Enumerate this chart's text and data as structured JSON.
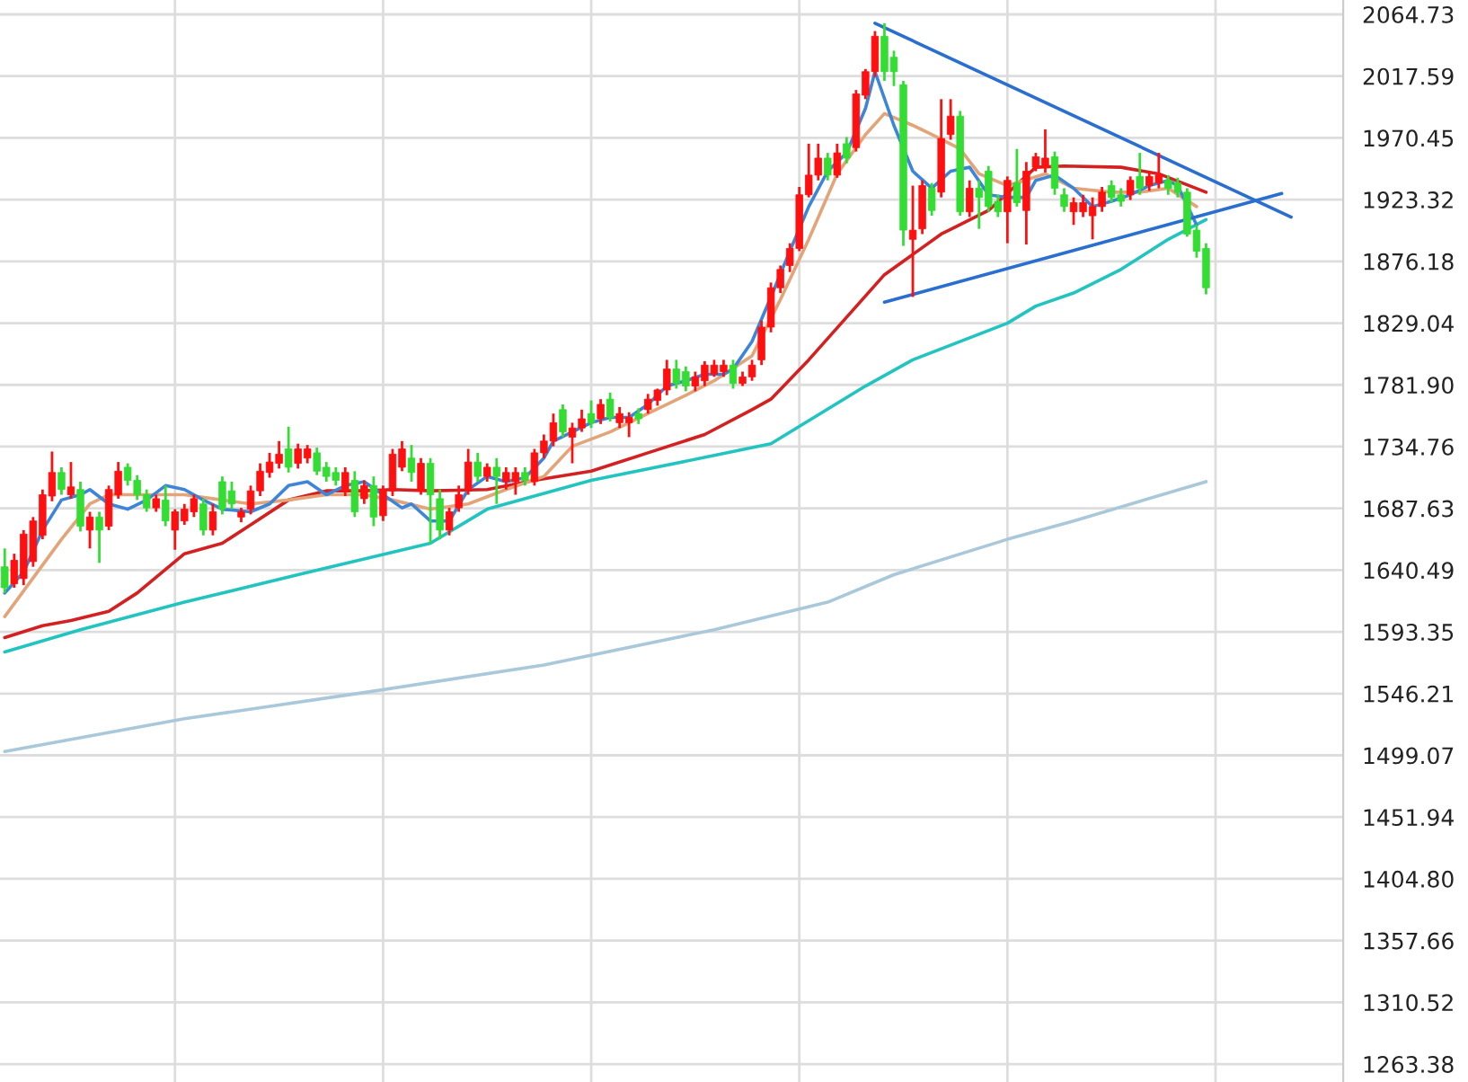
{
  "chart_data": {
    "type": "candlestick",
    "categories": [
      null,
      null,
      null,
      null,
      null,
      null,
      null,
      null,
      null,
      null,
      null,
      null,
      null,
      null,
      null,
      null,
      null,
      null,
      null,
      null,
      null,
      null,
      null,
      null,
      null,
      null,
      null,
      null,
      null,
      null,
      null,
      null,
      null,
      null,
      null,
      null,
      null,
      null,
      null,
      null,
      null,
      null,
      null,
      null,
      null,
      null,
      null,
      null,
      null,
      null,
      null,
      null,
      null,
      null,
      null,
      null,
      null,
      null,
      null,
      null,
      null,
      null,
      null,
      null,
      null,
      null,
      null,
      null,
      null,
      null,
      null,
      null,
      null,
      null,
      null,
      null,
      null,
      null,
      null,
      null,
      null,
      null,
      null,
      null,
      null,
      null,
      null,
      null,
      null,
      null,
      null,
      null,
      null,
      null,
      null,
      null,
      null,
      null,
      null,
      null,
      null,
      null,
      null,
      null,
      null,
      null,
      null,
      null,
      null,
      null,
      null,
      null,
      null,
      null,
      null,
      null,
      null,
      null,
      null,
      null,
      null,
      null,
      null,
      null,
      null,
      null,
      null,
      null,
      null,
      null,
      null,
      null,
      null,
      null,
      null,
      null,
      null,
      null,
      null,
      null,
      null,
      null
    ],
    "ohlc": [
      [
        1643,
        1657,
        1623,
        1627
      ],
      [
        1630,
        1653,
        1627,
        1648
      ],
      [
        1634,
        1671,
        1629,
        1668
      ],
      [
        1647,
        1681,
        1643,
        1678
      ],
      [
        1667,
        1702,
        1664,
        1698
      ],
      [
        1697,
        1731,
        1693,
        1715
      ],
      [
        1715,
        1719,
        1698,
        1702
      ],
      [
        1698,
        1723,
        1695,
        1704
      ],
      [
        1702,
        1708,
        1670,
        1674
      ],
      [
        1671,
        1685,
        1657,
        1681
      ],
      [
        1681,
        1685,
        1646,
        1671
      ],
      [
        1674,
        1705,
        1671,
        1702
      ],
      [
        1698,
        1723,
        1695,
        1716
      ],
      [
        1719,
        1722,
        1705,
        1709
      ],
      [
        1709,
        1713,
        1694,
        1698
      ],
      [
        1698,
        1702,
        1685,
        1688
      ],
      [
        1688,
        1698,
        1685,
        1695
      ],
      [
        1694,
        1705,
        1674,
        1678
      ],
      [
        1671,
        1687,
        1656,
        1685
      ],
      [
        1678,
        1691,
        1675,
        1687
      ],
      [
        1685,
        1698,
        1681,
        1695
      ],
      [
        1691,
        1695,
        1667,
        1671
      ],
      [
        1671,
        1691,
        1667,
        1685
      ],
      [
        1708,
        1712,
        1683,
        1687
      ],
      [
        1701,
        1708,
        1687,
        1691
      ],
      [
        1681,
        1688,
        1677,
        1685
      ],
      [
        1687,
        1705,
        1683,
        1701
      ],
      [
        1701,
        1722,
        1697,
        1716
      ],
      [
        1715,
        1730,
        1711,
        1723
      ],
      [
        1722,
        1739,
        1718,
        1729
      ],
      [
        1733,
        1750,
        1715,
        1719
      ],
      [
        1722,
        1737,
        1718,
        1733
      ],
      [
        1726,
        1736,
        1722,
        1733
      ],
      [
        1730,
        1734,
        1713,
        1716
      ],
      [
        1719,
        1723,
        1708,
        1712
      ],
      [
        1715,
        1719,
        1705,
        1709
      ],
      [
        1701,
        1719,
        1697,
        1715
      ],
      [
        1709,
        1716,
        1681,
        1685
      ],
      [
        1695,
        1709,
        1691,
        1705
      ],
      [
        1705,
        1712,
        1674,
        1681
      ],
      [
        1682,
        1705,
        1678,
        1702
      ],
      [
        1701,
        1733,
        1697,
        1729
      ],
      [
        1719,
        1739,
        1716,
        1733
      ],
      [
        1726,
        1736,
        1708,
        1715
      ],
      [
        1701,
        1726,
        1698,
        1722
      ],
      [
        1722,
        1726,
        1661,
        1698
      ],
      [
        1695,
        1702,
        1664,
        1671
      ],
      [
        1671,
        1688,
        1667,
        1685
      ],
      [
        1688,
        1705,
        1685,
        1698
      ],
      [
        1701,
        1733,
        1698,
        1723
      ],
      [
        1723,
        1730,
        1708,
        1712
      ],
      [
        1712,
        1722,
        1708,
        1719
      ],
      [
        1719,
        1726,
        1691,
        1712
      ],
      [
        1708,
        1719,
        1702,
        1715
      ],
      [
        1708,
        1719,
        1698,
        1715
      ],
      [
        1715,
        1719,
        1705,
        1709
      ],
      [
        1708,
        1733,
        1705,
        1730
      ],
      [
        1730,
        1744,
        1726,
        1739
      ],
      [
        1739,
        1760,
        1735,
        1753
      ],
      [
        1763,
        1767,
        1742,
        1746
      ],
      [
        1742,
        1753,
        1722,
        1749
      ],
      [
        1749,
        1763,
        1746,
        1756
      ],
      [
        1760,
        1770,
        1749,
        1753
      ],
      [
        1756,
        1771,
        1752,
        1767
      ],
      [
        1771,
        1776,
        1754,
        1757
      ],
      [
        1753,
        1765,
        1749,
        1760
      ],
      [
        1753,
        1761,
        1742,
        1757
      ],
      [
        1760,
        1764,
        1752,
        1756
      ],
      [
        1763,
        1775,
        1760,
        1771
      ],
      [
        1770,
        1779,
        1766,
        1778
      ],
      [
        1778,
        1801,
        1774,
        1794
      ],
      [
        1794,
        1801,
        1779,
        1783
      ],
      [
        1792,
        1796,
        1777,
        1781
      ],
      [
        1781,
        1792,
        1777,
        1788
      ],
      [
        1785,
        1800,
        1781,
        1797
      ],
      [
        1790,
        1801,
        1788,
        1797
      ],
      [
        1792,
        1801,
        1788,
        1797
      ],
      [
        1797,
        1801,
        1779,
        1783
      ],
      [
        1783,
        1792,
        1781,
        1788
      ],
      [
        1788,
        1801,
        1785,
        1797
      ],
      [
        1801,
        1831,
        1797,
        1826
      ],
      [
        1826,
        1860,
        1822,
        1856
      ],
      [
        1856,
        1873,
        1852,
        1870
      ],
      [
        1873,
        1890,
        1868,
        1886
      ],
      [
        1886,
        1933,
        1884,
        1927
      ],
      [
        1927,
        1966,
        1925,
        1942
      ],
      [
        1942,
        1966,
        1938,
        1955
      ],
      [
        1955,
        1959,
        1938,
        1942
      ],
      [
        1942,
        1966,
        1940,
        1959
      ],
      [
        1966,
        1971,
        1951,
        1955
      ],
      [
        1963,
        2007,
        1960,
        2004
      ],
      [
        2003,
        2023,
        2000,
        2021
      ],
      [
        2021,
        2052,
        2017,
        2048
      ],
      [
        2048,
        2058,
        2014,
        2021
      ],
      [
        2032,
        2037,
        2010,
        2021
      ],
      [
        2011,
        2014,
        1888,
        1900
      ],
      [
        1893,
        1934,
        1849,
        1900
      ],
      [
        1901,
        1938,
        1897,
        1934
      ],
      [
        1932,
        1936,
        1911,
        1915
      ],
      [
        1929,
        2000,
        1925,
        1970
      ],
      [
        1973,
        2000,
        1969,
        1987
      ],
      [
        1987,
        1991,
        1911,
        1914
      ],
      [
        1914,
        1938,
        1910,
        1932
      ],
      [
        1932,
        1938,
        1901,
        1925
      ],
      [
        1945,
        1949,
        1914,
        1918
      ],
      [
        1922,
        1927,
        1910,
        1914
      ],
      [
        1914,
        1941,
        1890,
        1938
      ],
      [
        1936,
        1962,
        1918,
        1921
      ],
      [
        1915,
        1952,
        1889,
        1945
      ],
      [
        1948,
        1959,
        1945,
        1956
      ],
      [
        1948,
        1977,
        1944,
        1955
      ],
      [
        1956,
        1960,
        1927,
        1932
      ],
      [
        1927,
        1932,
        1914,
        1918
      ],
      [
        1914,
        1925,
        1904,
        1921
      ],
      [
        1914,
        1927,
        1910,
        1921
      ],
      [
        1911,
        1925,
        1893,
        1918
      ],
      [
        1918,
        1933,
        1914,
        1929
      ],
      [
        1934,
        1938,
        1921,
        1925
      ],
      [
        1927,
        1932,
        1918,
        1922
      ],
      [
        1927,
        1941,
        1923,
        1938
      ],
      [
        1941,
        1959,
        1927,
        1932
      ],
      [
        1934,
        1945,
        1930,
        1941
      ],
      [
        1936,
        1959,
        1932,
        1942
      ],
      [
        1938,
        1942,
        1927,
        1932
      ],
      [
        1936,
        1940,
        1925,
        1929
      ],
      [
        1929,
        1932,
        1895,
        1897
      ],
      [
        1900,
        1904,
        1879,
        1884
      ],
      [
        1886,
        1890,
        1851,
        1856
      ],
      null,
      null,
      null,
      null,
      null,
      null,
      null,
      null,
      null,
      null,
      null,
      null,
      null,
      null
    ],
    "colors": [
      "#33dd33",
      "#ff1010",
      "#ff1010",
      "#ff1010",
      "#ff1010",
      "#ff1010",
      "#33dd33",
      "#ff1010",
      "#33dd33",
      "#ff1010",
      "#33dd33",
      "#ff1010",
      "#ff1010",
      "#33dd33",
      "#33dd33",
      "#33dd33",
      "#ff1010",
      "#33dd33",
      "#ff1010",
      "#ff1010",
      "#ff1010",
      "#33dd33",
      "#ff1010",
      "#33dd33",
      "#33dd33",
      "#ff1010",
      "#ff1010",
      "#ff1010",
      "#ff1010",
      "#ff1010",
      "#33dd33",
      "#ff1010",
      "#ff1010",
      "#33dd33",
      "#33dd33",
      "#33dd33",
      "#ff1010",
      "#33dd33",
      "#ff1010",
      "#33dd33",
      "#ff1010",
      "#ff1010",
      "#ff1010",
      "#33dd33",
      "#ff1010",
      "#33dd33",
      "#33dd33",
      "#ff1010",
      "#ff1010",
      "#ff1010",
      "#33dd33",
      "#ff1010",
      "#33dd33",
      "#ff1010",
      "#ff1010",
      "#33dd33",
      "#ff1010",
      "#ff1010",
      "#ff1010",
      "#33dd33",
      "#ff1010",
      "#ff1010",
      "#33dd33",
      "#ff1010",
      "#33dd33",
      "#ff1010",
      "#ff1010",
      "#33dd33",
      "#ff1010",
      "#ff1010",
      "#ff1010",
      "#33dd33",
      "#33dd33",
      "#ff1010",
      "#ff1010",
      "#ff1010",
      "#ff1010",
      "#33dd33",
      "#ff1010",
      "#ff1010",
      "#ff1010",
      "#ff1010",
      "#ff1010",
      "#ff1010",
      "#ff1010",
      "#ff1010",
      "#ff1010",
      "#33dd33",
      "#ff1010",
      "#33dd33",
      "#ff1010",
      "#ff1010",
      "#ff1010",
      "#33dd33",
      "#33dd33",
      "#33dd33",
      "#ff1010",
      "#ff1010",
      "#33dd33",
      "#ff1010",
      "#ff1010",
      "#33dd33",
      "#ff1010",
      "#33dd33",
      "#33dd33",
      "#33dd33",
      "#ff1010",
      "#33dd33",
      "#ff1010",
      "#ff1010",
      "#ff1010",
      "#33dd33",
      "#33dd33",
      "#ff1010",
      "#ff1010",
      "#ff1010",
      "#ff1010",
      "#33dd33",
      "#33dd33",
      "#ff1010",
      "#33dd33",
      "#ff1010",
      "#ff1010",
      "#33dd33",
      "#33dd33",
      "#33dd33",
      "#33dd33",
      "#33dd33",
      null,
      null,
      null,
      null,
      null,
      null,
      null,
      null,
      null,
      null,
      null,
      null,
      null,
      null
    ],
    "series": [
      {
        "type": "line",
        "color": "#a9c8da",
        "values": [
          1502,
          null,
          null,
          null,
          null,
          null,
          null,
          null,
          null,
          null,
          null,
          null,
          null,
          null,
          null,
          null,
          null,
          null,
          null,
          1527,
          null,
          null,
          null,
          null,
          null,
          null,
          null,
          null,
          null,
          null,
          null,
          null,
          null,
          null,
          null,
          null,
          null,
          null,
          1547,
          null,
          null,
          null,
          null,
          null,
          null,
          null,
          null,
          null,
          null,
          null,
          null,
          null,
          null,
          null,
          null,
          null,
          null,
          1568,
          null,
          null,
          null,
          null,
          null,
          null,
          null,
          null,
          null,
          null,
          null,
          null,
          null,
          null,
          null,
          null,
          null,
          1595,
          null,
          null,
          null,
          null,
          null,
          null,
          null,
          null,
          null,
          null,
          null,
          1616,
          null,
          null,
          null,
          null,
          null,
          null,
          1637,
          null,
          null,
          null,
          null,
          null,
          null,
          null,
          null,
          null,
          null,
          null,
          1664,
          null,
          null,
          null,
          null,
          null,
          null,
          1678,
          null,
          null,
          null,
          null,
          null,
          null,
          null,
          null,
          null,
          null,
          null,
          null,
          null,
          1708,
          null,
          null,
          null,
          null,
          null,
          null,
          null,
          null,
          null,
          null,
          null,
          null,
          null,
          null
        ]
      },
      {
        "type": "line",
        "color": "#22c4c0",
        "values": [
          1578,
          null,
          null,
          null,
          null,
          null,
          null,
          null,
          1595,
          null,
          null,
          null,
          null,
          null,
          null,
          null,
          null,
          null,
          null,
          1616,
          null,
          null,
          null,
          null,
          null,
          null,
          null,
          null,
          null,
          null,
          null,
          1637,
          null,
          null,
          null,
          null,
          null,
          null,
          null,
          null,
          null,
          null,
          null,
          null,
          null,
          1661,
          null,
          null,
          null,
          null,
          null,
          1687,
          null,
          null,
          null,
          null,
          null,
          null,
          null,
          null,
          null,
          null,
          1709,
          null,
          null,
          null,
          null,
          null,
          null,
          null,
          null,
          null,
          null,
          null,
          null,
          1728,
          null,
          null,
          null,
          null,
          null,
          1737,
          null,
          null,
          null,
          null,
          null,
          null,
          null,
          null,
          null,
          1781,
          null,
          null,
          null,
          null,
          1801,
          null,
          null,
          null,
          null,
          null,
          null,
          null,
          null,
          null,
          1829,
          null,
          null,
          1842,
          null,
          null,
          null,
          1852,
          null,
          null,
          null,
          null,
          1870,
          null,
          null,
          null,
          null,
          1893,
          null,
          null,
          null,
          1908,
          null,
          null,
          null,
          null,
          null,
          null,
          null,
          null,
          null,
          null,
          null,
          null,
          null,
          null
        ]
      },
      {
        "type": "line",
        "color": "#d42020",
        "values": [
          1589,
          null,
          null,
          null,
          1598,
          null,
          null,
          1602,
          null,
          null,
          null,
          1609,
          null,
          null,
          1623,
          null,
          null,
          null,
          null,
          1653,
          null,
          null,
          null,
          1661,
          null,
          null,
          1675,
          null,
          null,
          null,
          1694,
          null,
          null,
          null,
          1701,
          null,
          null,
          null,
          1701,
          null,
          null,
          1702,
          null,
          null,
          null,
          1701,
          null,
          null,
          null,
          null,
          null,
          1702,
          null,
          null,
          null,
          null,
          1709,
          null,
          null,
          null,
          null,
          null,
          1716,
          null,
          null,
          null,
          null,
          null,
          1730,
          null,
          null,
          null,
          null,
          null,
          1744,
          null,
          null,
          null,
          null,
          1763,
          null,
          1771,
          null,
          null,
          null,
          1801,
          null,
          null,
          null,
          null,
          null,
          null,
          null,
          1866,
          null,
          null,
          null,
          null,
          null,
          1897,
          null,
          null,
          null,
          null,
          1915,
          null,
          null,
          null,
          null,
          1948,
          null,
          null,
          1949,
          null,
          null,
          null,
          null,
          null,
          1948,
          null,
          null,
          null,
          1943,
          null,
          null,
          null,
          null,
          1929,
          null,
          null,
          null,
          null,
          null,
          null,
          null,
          null,
          null,
          null,
          null,
          null,
          null,
          null
        ]
      },
      {
        "type": "line",
        "color": "#e2a478",
        "values": [
          1605,
          null,
          null,
          null,
          null,
          null,
          1664,
          null,
          null,
          1691,
          null,
          1698,
          null,
          null,
          null,
          1698,
          null,
          null,
          null,
          1698,
          null,
          null,
          null,
          1694,
          null,
          null,
          1691,
          null,
          null,
          null,
          1694,
          null,
          null,
          null,
          1698,
          null,
          null,
          null,
          1698,
          null,
          null,
          1694,
          null,
          null,
          null,
          1687,
          null,
          null,
          null,
          1691,
          null,
          null,
          null,
          1702,
          null,
          null,
          null,
          1712,
          null,
          null,
          1735,
          null,
          null,
          null,
          1746,
          null,
          null,
          null,
          1760,
          null,
          null,
          null,
          1774,
          null,
          null,
          1785,
          null,
          null,
          null,
          1804,
          null,
          null,
          1847,
          null,
          null,
          1893,
          null,
          null,
          1943,
          null,
          null,
          1973,
          null,
          1989,
          null,
          null,
          1980,
          null,
          1973,
          null,
          null,
          1962,
          null,
          1943,
          null,
          null,
          1934,
          null,
          null,
          null,
          1943,
          null,
          null,
          1932,
          null,
          null,
          null,
          1929,
          null,
          null,
          1929,
          null,
          null,
          1932,
          null,
          null,
          1918,
          null,
          null,
          null,
          null,
          null,
          null,
          null,
          null,
          null,
          null,
          null,
          null,
          null,
          null,
          null
        ]
      },
      {
        "type": "line",
        "color": "#3d85d8",
        "values": [
          1623,
          null,
          1639,
          null,
          1671,
          null,
          1694,
          null,
          1698,
          1702,
          null,
          1691,
          null,
          1687,
          null,
          1694,
          null,
          1705,
          null,
          1702,
          null,
          1694,
          null,
          1687,
          null,
          null,
          1685,
          null,
          1691,
          null,
          1705,
          null,
          1708,
          null,
          1698,
          null,
          1705,
          null,
          1708,
          null,
          1698,
          null,
          1688,
          1691,
          null,
          1678,
          null,
          1678,
          null,
          1702,
          null,
          1712,
          null,
          1708,
          null,
          1711,
          null,
          1726,
          1739,
          null,
          1746,
          null,
          1753,
          null,
          1757,
          null,
          1757,
          null,
          1767,
          null,
          1781,
          null,
          1785,
          null,
          1790,
          null,
          1790,
          1794,
          null,
          1815,
          null,
          1849,
          null,
          1884,
          null,
          1918,
          null,
          1945,
          null,
          1959,
          null,
          1993,
          2021,
          null,
          1980,
          null,
          1945,
          null,
          1932,
          null,
          1945,
          null,
          1948,
          null,
          1927,
          null,
          1925,
          null,
          1925,
          1938,
          null,
          1942,
          null,
          1932,
          null,
          1918,
          null,
          1922,
          null,
          1927,
          null,
          1934,
          null,
          1938,
          1934,
          null,
          1904,
          null,
          null,
          null,
          null,
          null,
          null,
          null,
          null,
          null,
          null,
          null,
          null,
          null,
          null,
          null
        ]
      },
      {
        "type": "line",
        "color": "#2a6fd0",
        "values": [
          null,
          null,
          null,
          null,
          null,
          null,
          null,
          null,
          null,
          null,
          null,
          null,
          null,
          null,
          null,
          null,
          null,
          null,
          null,
          null,
          null,
          null,
          null,
          null,
          null,
          null,
          null,
          null,
          null,
          null,
          null,
          null,
          null,
          null,
          null,
          null,
          null,
          null,
          null,
          null,
          null,
          null,
          null,
          null,
          null,
          null,
          null,
          null,
          null,
          null,
          null,
          null,
          null,
          null,
          null,
          null,
          null,
          null,
          null,
          null,
          null,
          null,
          null,
          null,
          null,
          null,
          null,
          null,
          null,
          null,
          null,
          null,
          null,
          null,
          null,
          null,
          null,
          null,
          null,
          null,
          null,
          null,
          null,
          null,
          null,
          null,
          null,
          null,
          null,
          null,
          null,
          null,
          2058,
          null,
          null,
          null,
          null,
          null,
          null,
          null,
          null,
          null,
          null,
          null,
          null,
          null,
          null,
          null,
          null,
          null,
          null,
          null,
          null,
          null,
          null,
          null,
          null,
          null,
          null,
          null,
          null,
          null,
          null,
          null,
          null,
          null,
          null,
          null,
          null,
          null,
          null,
          null,
          null,
          null,
          null,
          null,
          1910,
          null,
          null,
          null,
          null,
          null
        ]
      },
      {
        "type": "line",
        "color": "#2a6fd0",
        "values": [
          null,
          null,
          null,
          null,
          null,
          null,
          null,
          null,
          null,
          null,
          null,
          null,
          null,
          null,
          null,
          null,
          null,
          null,
          null,
          null,
          null,
          null,
          null,
          null,
          null,
          null,
          null,
          null,
          null,
          null,
          null,
          null,
          null,
          null,
          null,
          null,
          null,
          null,
          null,
          null,
          null,
          null,
          null,
          null,
          null,
          null,
          null,
          null,
          null,
          null,
          null,
          null,
          null,
          null,
          null,
          null,
          null,
          null,
          null,
          null,
          null,
          null,
          null,
          null,
          null,
          null,
          null,
          null,
          null,
          null,
          null,
          null,
          null,
          null,
          null,
          null,
          null,
          null,
          null,
          null,
          null,
          null,
          null,
          null,
          null,
          null,
          null,
          null,
          null,
          null,
          null,
          null,
          null,
          1845,
          null,
          null,
          null,
          null,
          null,
          null,
          null,
          null,
          null,
          null,
          null,
          null,
          null,
          null,
          null,
          null,
          null,
          null,
          null,
          null,
          null,
          null,
          null,
          null,
          null,
          null,
          null,
          null,
          null,
          null,
          null,
          null,
          null,
          null,
          null,
          null,
          null,
          null,
          null,
          null,
          null,
          1928,
          null,
          null,
          null,
          null,
          null,
          null
        ]
      }
    ],
    "ylim": [
      1249.7,
      2075.7
    ],
    "yticks": [
      {
        "value": 1263.38,
        "label": "1263.38"
      },
      {
        "value": 1310.52,
        "label": "1310.52"
      },
      {
        "value": 1357.66,
        "label": "1357.66"
      },
      {
        "value": 1404.8,
        "label": "1404.80"
      },
      {
        "value": 1451.94,
        "label": "1451.94"
      },
      {
        "value": 1499.07,
        "label": "1499.07"
      },
      {
        "value": 1546.21,
        "label": "1546.21"
      },
      {
        "value": 1593.35,
        "label": "1593.35"
      },
      {
        "value": 1640.49,
        "label": "1640.49"
      },
      {
        "value": 1687.63,
        "label": "1687.63"
      },
      {
        "value": 1734.76,
        "label": "1734.76"
      },
      {
        "value": 1781.9,
        "label": "1781.90"
      },
      {
        "value": 1829.04,
        "label": "1829.04"
      },
      {
        "value": 1876.18,
        "label": "1876.18"
      },
      {
        "value": 1923.32,
        "label": "1923.32"
      },
      {
        "value": 1970.45,
        "label": "1970.45"
      },
      {
        "value": 2017.59,
        "label": "2017.59"
      },
      {
        "value": 2064.73,
        "label": "2064.73"
      }
    ],
    "grid": true,
    "tick_labels": "y"
  }
}
